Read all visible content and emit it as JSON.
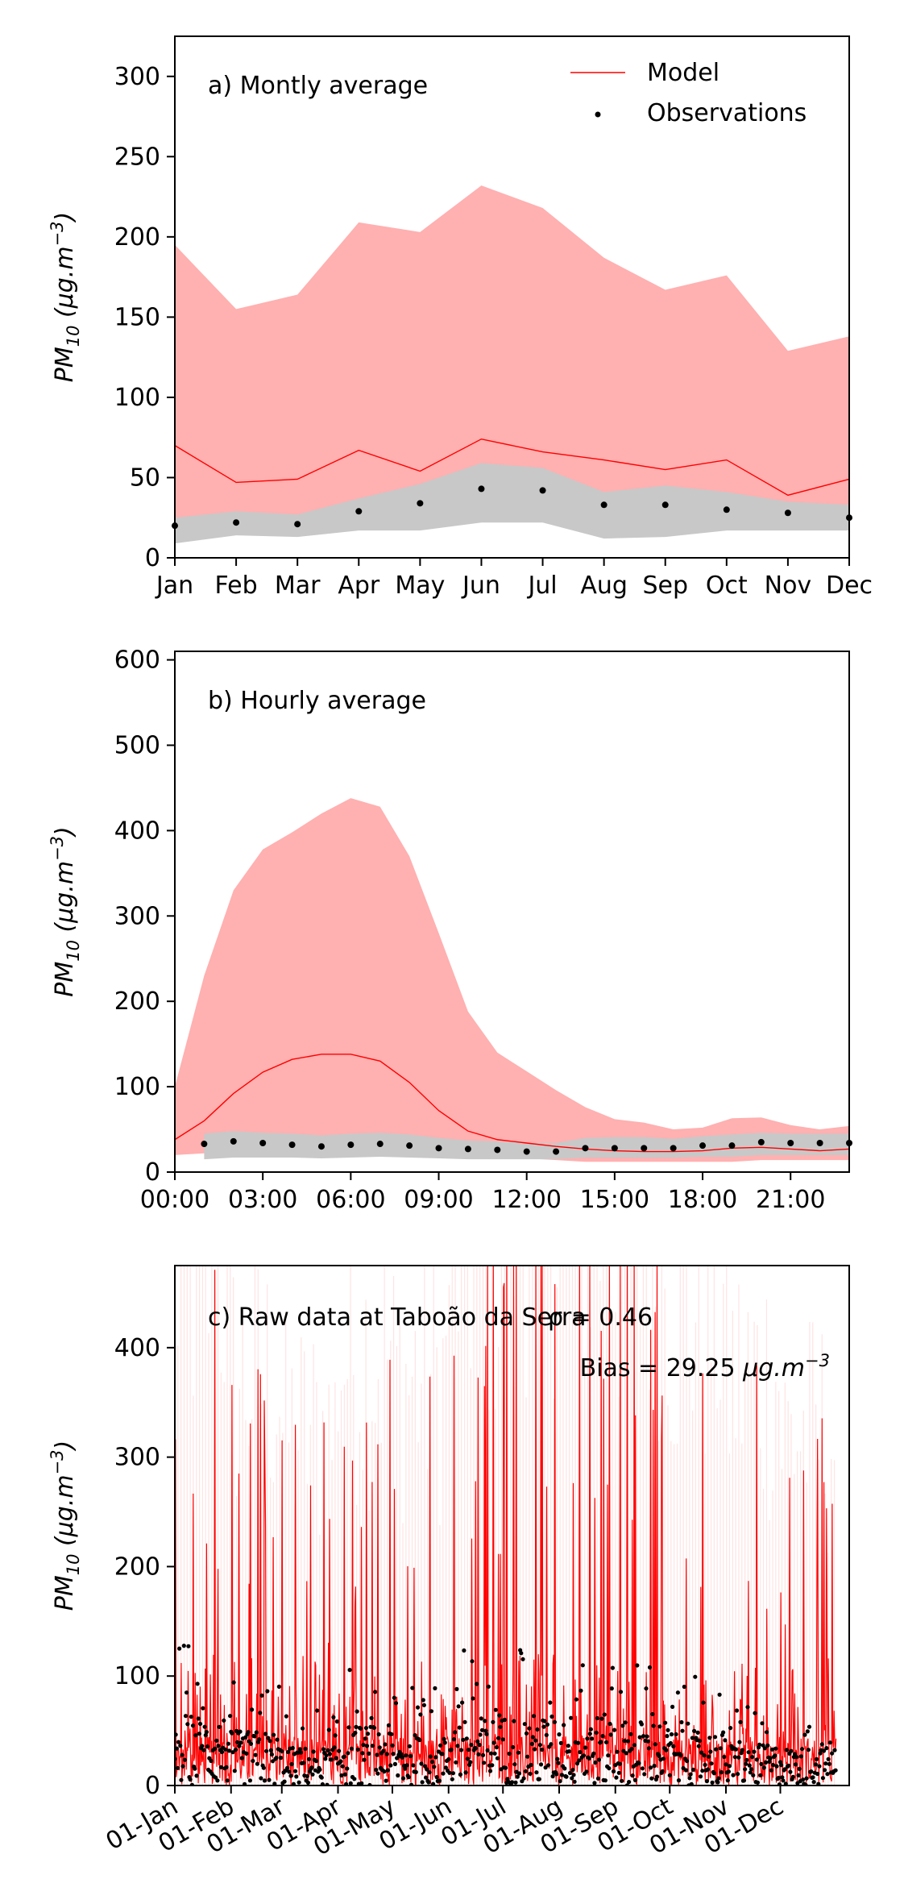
{
  "chart_data": [
    {
      "panel": "a",
      "type": "line",
      "title": "a) Montly average",
      "xlabel": "",
      "ylabel": "PM10 (μg.m−3)",
      "categories": [
        "Jan",
        "Feb",
        "Mar",
        "Apr",
        "May",
        "Jun",
        "Jul",
        "Aug",
        "Sep",
        "Oct",
        "Nov",
        "Dec"
      ],
      "ylim": [
        0,
        325
      ],
      "yticks": [
        0,
        50,
        100,
        150,
        200,
        250,
        300
      ],
      "legend": {
        "placement": "top-right",
        "entries": [
          "Model",
          "Observations"
        ]
      },
      "series": [
        {
          "name": "Model",
          "values": [
            70,
            47,
            49,
            67,
            54,
            74,
            66,
            61,
            55,
            61,
            39,
            49
          ]
        },
        {
          "name": "Observations",
          "values": [
            20,
            22,
            21,
            29,
            34,
            43,
            42,
            33,
            33,
            30,
            28,
            25
          ]
        }
      ],
      "model_band_upper": [
        195,
        155,
        164,
        209,
        203,
        232,
        218,
        187,
        167,
        176,
        129,
        138
      ],
      "model_band_lower": [
        22,
        22,
        21,
        27,
        31,
        33,
        28,
        25,
        28,
        26,
        20,
        20
      ],
      "obs_band_upper": [
        25,
        29,
        27,
        37,
        46,
        59,
        56,
        41,
        45,
        41,
        35,
        33
      ],
      "obs_band_lower": [
        9,
        14,
        13,
        17,
        17,
        22,
        22,
        12,
        13,
        17,
        17,
        17
      ]
    },
    {
      "panel": "b",
      "type": "line",
      "title": "b) Hourly average",
      "xlabel": "",
      "ylabel": "PM10 (μg.m−3)",
      "x": [
        0,
        1,
        2,
        3,
        4,
        5,
        6,
        7,
        8,
        9,
        10,
        11,
        12,
        13,
        14,
        15,
        16,
        17,
        18,
        19,
        20,
        21,
        22,
        23
      ],
      "xticks": [
        0,
        3,
        6,
        9,
        12,
        15,
        18,
        21
      ],
      "xticklabels": [
        "00:00",
        "03:00",
        "06:00",
        "09:00",
        "12:00",
        "15:00",
        "18:00",
        "21:00"
      ],
      "xlim": [
        0,
        23
      ],
      "ylim": [
        0,
        610
      ],
      "yticks": [
        0,
        100,
        200,
        300,
        400,
        500,
        600
      ],
      "series": [
        {
          "name": "Model",
          "values": [
            38,
            60,
            92,
            117,
            132,
            138,
            138,
            130,
            105,
            72,
            48,
            38,
            34,
            30,
            27,
            25,
            24,
            24,
            25,
            28,
            29,
            27,
            25,
            27
          ]
        },
        {
          "name": "Observations",
          "values": [
            null,
            33,
            36,
            34,
            32,
            30,
            32,
            33,
            31,
            28,
            27,
            26,
            24,
            24,
            28,
            28,
            28,
            28,
            31,
            31,
            35,
            34,
            34,
            34
          ]
        }
      ],
      "model_band_upper": [
        100,
        230,
        330,
        378,
        398,
        420,
        438,
        428,
        370,
        280,
        188,
        140,
        118,
        96,
        76,
        62,
        58,
        50,
        52,
        63,
        64,
        55,
        50,
        54
      ],
      "model_band_lower": [
        20,
        22,
        28,
        30,
        30,
        30,
        30,
        28,
        25,
        22,
        20,
        18,
        16,
        14,
        12,
        12,
        12,
        12,
        12,
        12,
        14,
        14,
        14,
        14
      ],
      "obs_band_upper": [
        null,
        45,
        48,
        46,
        45,
        43,
        45,
        46,
        44,
        40,
        37,
        36,
        34,
        34,
        40,
        41,
        41,
        39,
        42,
        44,
        46,
        45,
        45,
        45
      ],
      "obs_band_lower": [
        null,
        15,
        17,
        17,
        17,
        16,
        17,
        18,
        17,
        16,
        15,
        15,
        15,
        15,
        17,
        17,
        17,
        17,
        18,
        18,
        20,
        20,
        20,
        20
      ]
    },
    {
      "panel": "c",
      "type": "line",
      "title": "c) Raw data at Taboão da Serra",
      "xlabel": "",
      "ylabel": "PM10 (μg.m−3)",
      "annotations": [
        "ρ = 0.46",
        "Bias = 29.25 μg.m−3"
      ],
      "xticklabels": [
        "01-Jan",
        "01-Feb",
        "01-Mar",
        "01-Apr",
        "01-May",
        "01-Jun",
        "01-Jul",
        "01-Aug",
        "01-Sep",
        "01-Oct",
        "01-Nov",
        "01-Dec"
      ],
      "xtick_days": [
        0,
        31,
        59,
        90,
        120,
        151,
        181,
        212,
        243,
        273,
        304,
        334
      ],
      "xlim_days": [
        0,
        372
      ],
      "ylim": [
        0,
        475
      ],
      "yticks": [
        0,
        100,
        200,
        300,
        400
      ],
      "series": [
        {
          "name": "Model",
          "description": "hourly values",
          "typical_range": [
            0,
            475
          ]
        },
        {
          "name": "Observations",
          "description": "hourly values",
          "typical_range": [
            0,
            130
          ]
        }
      ],
      "monthly_peaks_model": [
        380,
        300,
        260,
        320,
        300,
        400,
        450,
        430,
        400,
        350,
        300,
        260
      ],
      "monthly_peaks_obs": [
        130,
        100,
        70,
        110,
        90,
        125,
        130,
        130,
        120,
        100,
        75,
        70
      ]
    }
  ],
  "colors": {
    "model_line": "#ff0000",
    "model_band": "#ffb0b0",
    "obs_points": "#000000",
    "obs_band": "#c8c8c8"
  }
}
